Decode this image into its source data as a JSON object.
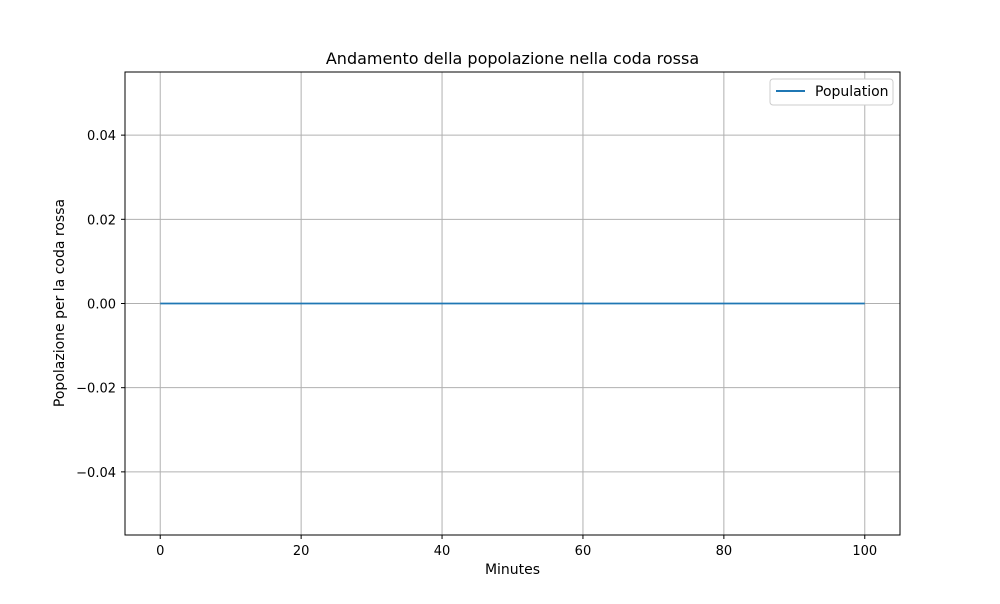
{
  "chart_data": {
    "type": "line",
    "title": "Andamento della popolazione nella coda rossa",
    "xlabel": "Minutes",
    "ylabel": "Popolazione per la coda rossa",
    "xlim": [
      -5,
      105
    ],
    "ylim": [
      -0.055,
      0.055
    ],
    "xticks": [
      0,
      20,
      40,
      60,
      80,
      100
    ],
    "xtick_labels": [
      "0",
      "20",
      "40",
      "60",
      "80",
      "100"
    ],
    "yticks": [
      -0.04,
      -0.02,
      0.0,
      0.02,
      0.04
    ],
    "ytick_labels": [
      "−0.04",
      "−0.02",
      "0.00",
      "0.02",
      "0.04"
    ],
    "grid": true,
    "legend": {
      "placement": "upper right"
    },
    "series": [
      {
        "name": "Population",
        "color": "#1f77b4",
        "x": [
          0,
          100
        ],
        "y": [
          0,
          0
        ]
      }
    ]
  }
}
